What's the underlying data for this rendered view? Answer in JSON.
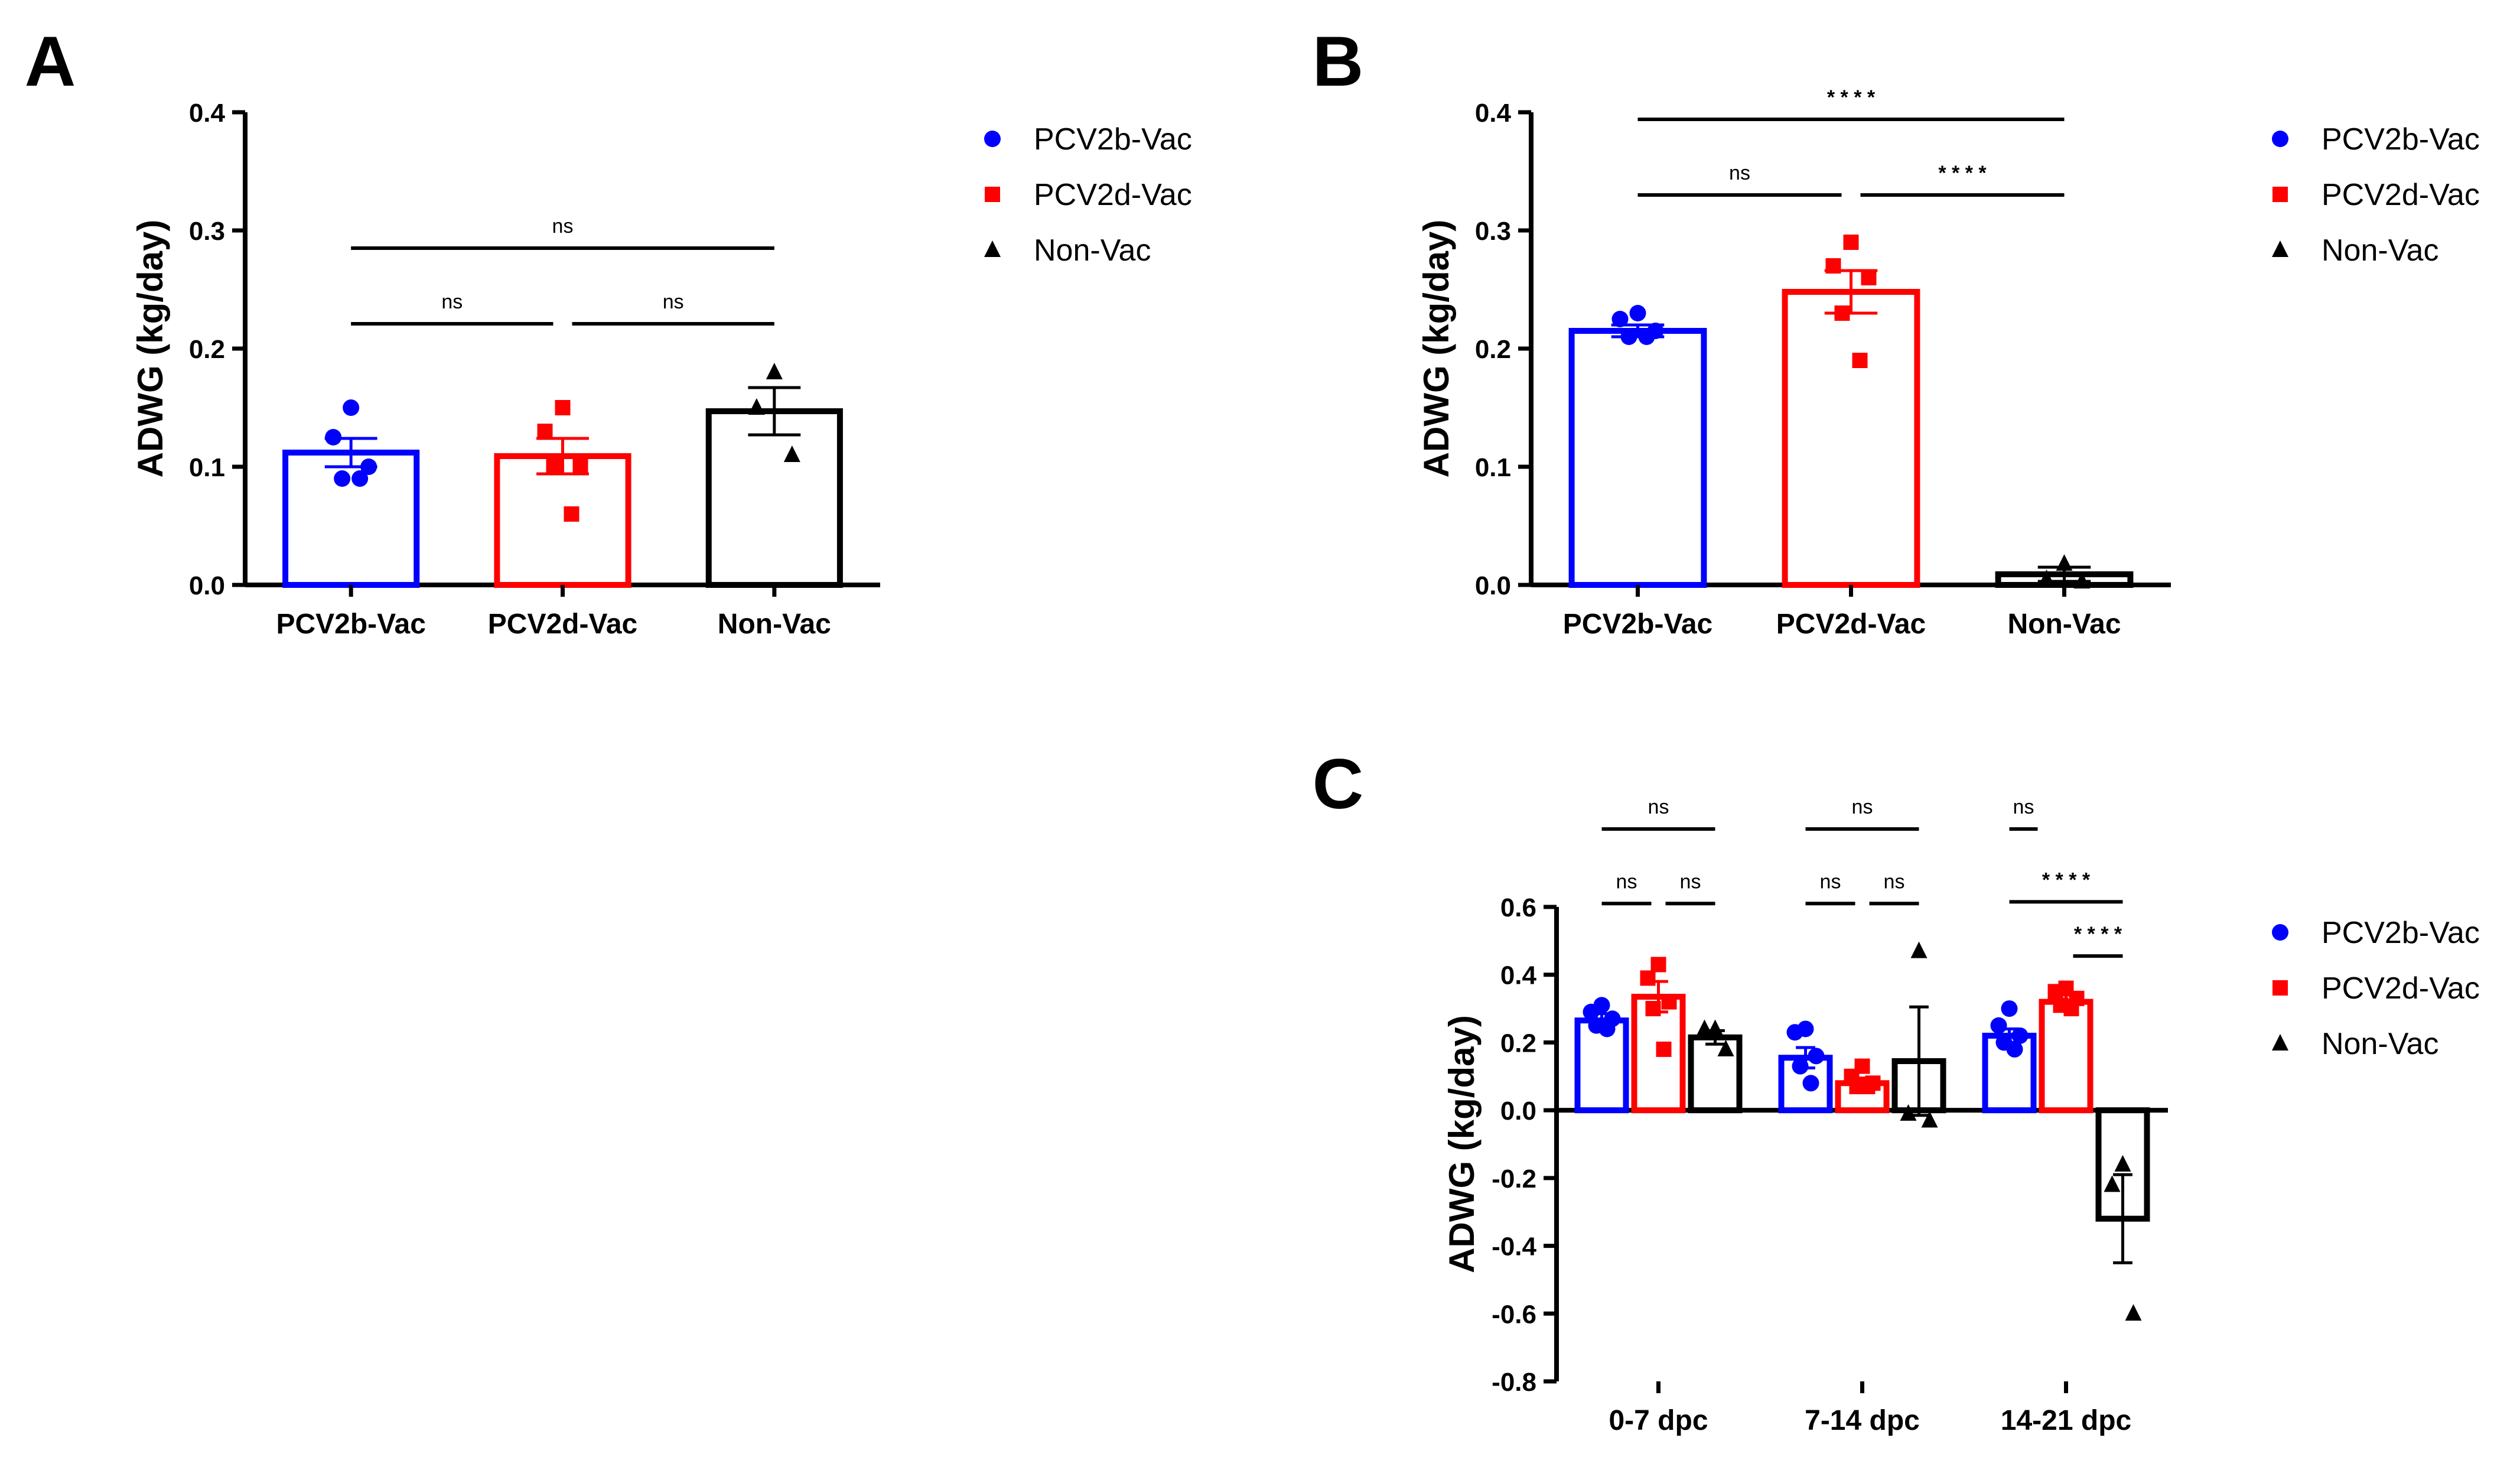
{
  "colors": {
    "PCV2b-Vac": "#0000ff",
    "PCV2d-Vac": "#ff0000",
    "Non-Vac": "#000000"
  },
  "chart_data": [
    {
      "panel": "A",
      "type": "bar",
      "ylabel": "ADWG (kg/day)",
      "ylim": [
        0,
        0.4
      ],
      "yticks": [
        0.0,
        0.1,
        0.2,
        0.3,
        0.4
      ],
      "ytick_labels": [
        "0.0",
        "0.1",
        "0.2",
        "0.3",
        "0.4"
      ],
      "categories": [
        "PCV2b-Vac",
        "PCV2d-Vac",
        "Non-Vac"
      ],
      "legend": [
        "PCV2b-Vac",
        "PCV2d-Vac",
        "Non-Vac"
      ],
      "groups": [
        {
          "name": "PCV2b-Vac",
          "mean": 0.112,
          "sem": 0.012,
          "points": [
            0.15,
            0.125,
            0.1,
            0.09,
            0.09
          ]
        },
        {
          "name": "PCV2d-Vac",
          "mean": 0.109,
          "sem": 0.015,
          "points": [
            0.15,
            0.13,
            0.1,
            0.1,
            0.06
          ]
        },
        {
          "name": "Non-Vac",
          "mean": 0.147,
          "sem": 0.02,
          "points": [
            0.18,
            0.15,
            0.11
          ]
        }
      ],
      "comparisons": [
        {
          "from": 0,
          "to": 1,
          "label": "ns",
          "y": 0.221
        },
        {
          "from": 1,
          "to": 2,
          "label": "ns",
          "y": 0.221
        },
        {
          "from": 0,
          "to": 2,
          "label": "ns",
          "y": 0.285
        }
      ]
    },
    {
      "panel": "B",
      "type": "bar",
      "ylabel": "ADWG (kg/day)",
      "ylim": [
        0,
        0.4
      ],
      "yticks": [
        0.0,
        0.1,
        0.2,
        0.3,
        0.4
      ],
      "ytick_labels": [
        "0.0",
        "0.1",
        "0.2",
        "0.3",
        "0.4"
      ],
      "categories": [
        "PCV2b-Vac",
        "PCV2d-Vac",
        "Non-Vac"
      ],
      "legend": [
        "PCV2b-Vac",
        "PCV2d-Vac",
        "Non-Vac"
      ],
      "groups": [
        {
          "name": "PCV2b-Vac",
          "mean": 0.215,
          "sem": 0.005,
          "points": [
            0.23,
            0.225,
            0.215,
            0.21,
            0.21
          ]
        },
        {
          "name": "PCV2d-Vac",
          "mean": 0.248,
          "sem": 0.018,
          "points": [
            0.29,
            0.27,
            0.26,
            0.23,
            0.19
          ]
        },
        {
          "name": "Non-Vac",
          "mean": 0.009,
          "sem": 0.006,
          "points": [
            0.018,
            0.005,
            0.003
          ]
        }
      ],
      "comparisons": [
        {
          "from": 0,
          "to": 1,
          "label": "ns",
          "y": 0.33
        },
        {
          "from": 1,
          "to": 2,
          "label": "****",
          "y": 0.33
        },
        {
          "from": 0,
          "to": 2,
          "label": "****",
          "y": 0.394
        }
      ]
    },
    {
      "panel": "C",
      "type": "bar",
      "ylabel": "ADWG (kg/day)",
      "ylim": [
        -0.8,
        0.6
      ],
      "yticks": [
        -0.8,
        -0.6,
        -0.4,
        -0.2,
        0.0,
        0.2,
        0.4,
        0.6
      ],
      "ytick_labels": [
        "-0.8",
        "-0.6",
        "-0.4",
        "-0.2",
        "0.0",
        "0.2",
        "0.4",
        "0.6"
      ],
      "categories": [
        "0-7 dpc",
        "7-14 dpc",
        "14-21 dpc"
      ],
      "series": [
        {
          "name": "PCV2b-Vac",
          "mean": [
            0.265,
            0.155,
            0.22
          ],
          "sem": [
            0.02,
            0.03,
            0.02
          ],
          "points": [
            [
              0.31,
              0.29,
              0.27,
              0.25,
              0.24
            ],
            [
              0.24,
              0.23,
              0.16,
              0.13,
              0.08
            ],
            [
              0.3,
              0.25,
              0.22,
              0.2,
              0.18
            ]
          ]
        },
        {
          "name": "PCV2d-Vac",
          "mean": [
            0.335,
            0.08,
            0.32
          ],
          "sem": [
            0.045,
            0.015,
            0.02
          ],
          "points": [
            [
              0.43,
              0.39,
              0.32,
              0.3,
              0.18
            ],
            [
              0.13,
              0.1,
              0.08,
              0.07,
              0.07
            ],
            [
              0.36,
              0.35,
              0.33,
              0.31,
              0.3
            ]
          ]
        },
        {
          "name": "Non-Vac",
          "mean": [
            0.215,
            0.145,
            -0.32
          ],
          "sem": [
            0.02,
            0.16,
            0.13
          ],
          "points": [
            [
              0.24,
              0.24,
              0.18
            ],
            [
              0.47,
              -0.01,
              -0.03
            ],
            [
              -0.16,
              -0.22,
              -0.6
            ]
          ]
        }
      ],
      "comparisons": [
        {
          "group": 0,
          "from": 0,
          "to": 1,
          "label": "ns",
          "y": 0.61
        },
        {
          "group": 0,
          "from": 1,
          "to": 2,
          "label": "ns",
          "y": 0.61
        },
        {
          "group": 0,
          "from": 0,
          "to": 2,
          "label": "ns",
          "y": 0.83
        },
        {
          "group": 1,
          "from": 0,
          "to": 1,
          "label": "ns",
          "y": 0.61
        },
        {
          "group": 1,
          "from": 1,
          "to": 2,
          "label": "ns",
          "y": 0.61
        },
        {
          "group": 1,
          "from": 0,
          "to": 2,
          "label": "ns",
          "y": 0.83
        },
        {
          "group": 2,
          "from": 1,
          "to": 2,
          "label": "****",
          "y": 0.455
        },
        {
          "group": 2,
          "from": 0,
          "to": 2,
          "label": "****",
          "y": 0.615
        },
        {
          "group": 2,
          "from": 0,
          "to": 0.5,
          "label": "ns",
          "y": 0.83
        }
      ],
      "legend": [
        "PCV2b-Vac",
        "PCV2d-Vac",
        "Non-Vac"
      ]
    }
  ],
  "panels": {
    "a": "A",
    "b": "B",
    "c": "C"
  }
}
